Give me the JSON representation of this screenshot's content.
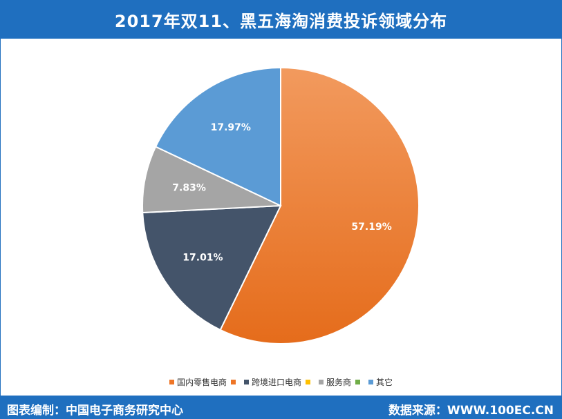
{
  "header": {
    "title": "2017年双11、黑五海淘消费投诉领域分布"
  },
  "footer": {
    "left": "图表编制：中国电子商务研究中心",
    "right": "数据来源：WWW.100EC.CN"
  },
  "chart_data": {
    "type": "pie",
    "title": "2017年双11、黑五海淘消费投诉领域分布",
    "slices": [
      {
        "name": "国内零售电商",
        "value": 57.19,
        "label": "57.19%",
        "color": "#ee7526"
      },
      {
        "name": "跨境进口电商",
        "value": 17.01,
        "label": "17.01%",
        "color": "#44546a"
      },
      {
        "name": "服务商",
        "value": 7.83,
        "label": "7.83%",
        "color": "#a5a5a5"
      },
      {
        "name": "其它",
        "value": 17.97,
        "label": "17.97%",
        "color": "#5b9bd5"
      }
    ],
    "legend_position": "bottom",
    "legend_extra_markers": [
      "#ee7526",
      "#ffc000",
      "#70ad47"
    ]
  }
}
